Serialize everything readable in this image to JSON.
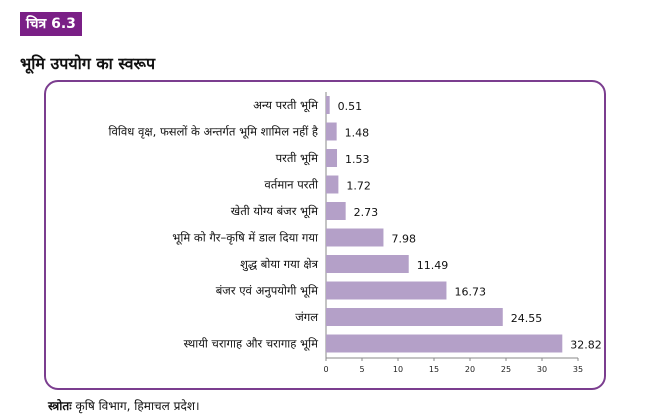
{
  "figure_tag": "चित्र 6.3",
  "figure_title": "भूमि उपयोग का स्वरूप",
  "source": {
    "label": "स्त्रोतः",
    "text": "कृषि विभाग, हिमाचल प्रदेश।"
  },
  "colors": {
    "bar": "#b4a0c8",
    "frame": "#7b3d8f",
    "tag_bg": "#7a1f86"
  },
  "chart_data": {
    "type": "bar",
    "orientation": "horizontal",
    "categories": [
      "अन्य परती भूमि",
      "विविध वृक्ष, फसलों के अन्तर्गत भूमि शामिल नहीं है",
      "परती भूमि",
      "वर्तमान परती",
      "खेती योग्य बंजर भूमि",
      "भूमि को गैर–कृषि में डाल दिया गया",
      "शुद्ध बोया गया क्षेत्र",
      "बंजर एवं अनुपयोगी भूमि",
      "जंगल",
      "स्थायी चरागाह और चरागाह भूमि"
    ],
    "values": [
      0.51,
      1.48,
      1.53,
      1.72,
      2.73,
      7.98,
      11.49,
      16.73,
      24.55,
      32.82
    ],
    "value_labels": [
      "0.51",
      "1.48",
      "1.53",
      "1.72",
      "2.73",
      "7.98",
      "11.49",
      "16.73",
      "24.55",
      "32.82"
    ],
    "xlim": [
      0,
      35
    ],
    "xticks": [
      "0",
      "5",
      "10",
      "15",
      "20",
      "25",
      "30",
      "35"
    ],
    "grid": false,
    "legend": "none"
  }
}
